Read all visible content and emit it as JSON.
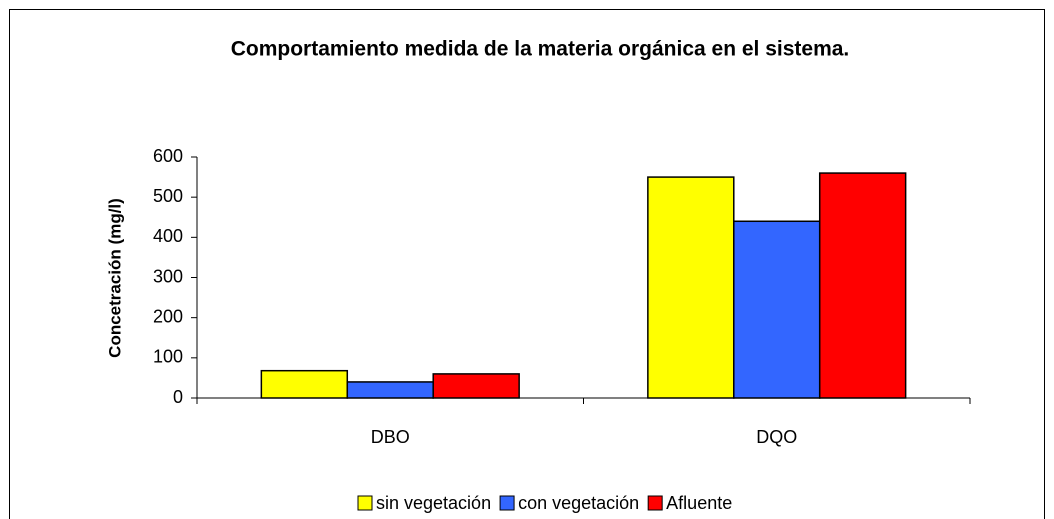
{
  "chart_data": {
    "type": "bar",
    "title": "Comportamiento medida de la materia orgánica en el sistema.",
    "y_label": "Concetración (mg/l)",
    "categories": [
      "DBO",
      "DQO"
    ],
    "series": [
      {
        "name": "sin vegetación",
        "color": "#ffff00",
        "values": [
          68,
          550
        ]
      },
      {
        "name": "con vegetación",
        "color": "#3366ff",
        "values": [
          40,
          440
        ]
      },
      {
        "name": "Afluente",
        "color": "#ff0000",
        "values": [
          60,
          560
        ]
      }
    ],
    "ylim": [
      0,
      600
    ],
    "yticks": [
      0,
      100,
      200,
      300,
      400,
      500,
      600
    ],
    "grid": false,
    "legend": "bottom"
  }
}
